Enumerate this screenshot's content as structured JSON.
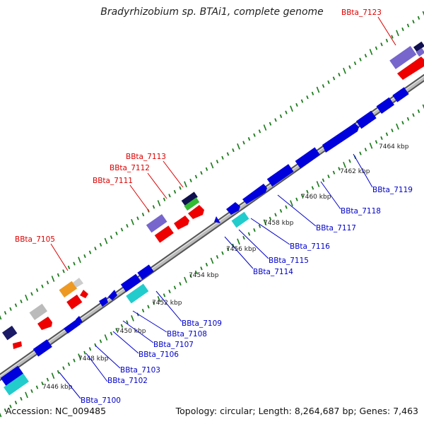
{
  "title": "Bradyrhizobium sp. BTAi1, complete genome",
  "footer": {
    "accession": "Accession: NC_009485",
    "summary": "Topology: circular; Length: 8,264,687 bp; Genes: 7,463"
  },
  "colors": {
    "backbone": "#999999",
    "tick": "#1a7a1a",
    "upper_label": "#dd0000",
    "lower_label": "#0000cc"
  },
  "ticks": [
    "7446 kbp",
    "7448 kbp",
    "7450 kbp",
    "7452 kbp",
    "7454 kbp",
    "7456 kbp",
    "7458 kbp",
    "7460 kbp",
    "7462 kbp",
    "7464 kbp"
  ],
  "upper_labels": [
    "BBta_7105",
    "BBta_7111",
    "BBta_7112",
    "BBta_7113",
    "BBta_7123"
  ],
  "lower_labels": [
    "BBta_7100",
    "BBta_7102",
    "BBta_7103",
    "BBta_7106",
    "BBta_7107",
    "BBta_7108",
    "BBta_7109",
    "BBta_7114",
    "BBta_7115",
    "BBta_7116",
    "BBta_7117",
    "BBta_7118",
    "BBta_7119"
  ]
}
